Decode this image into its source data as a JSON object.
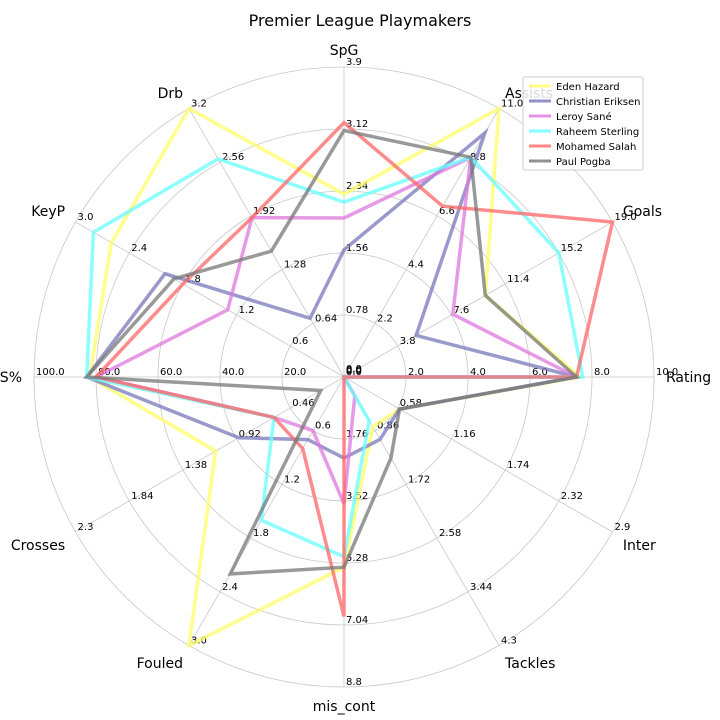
{
  "chart_data": {
    "type": "radar",
    "title": "Premier League Playmakers",
    "grid": true,
    "legend_position": "top-right",
    "axes": [
      {
        "name": "SpG",
        "max": 3.9,
        "ticks": [
          "0.78",
          "1.56",
          "2.34",
          "3.12",
          "3.9"
        ]
      },
      {
        "name": "Assists",
        "max": 11.0,
        "ticks": [
          "2.2",
          "4.4",
          "6.6",
          "8.8",
          "11.0"
        ]
      },
      {
        "name": "Goals",
        "max": 19.0,
        "ticks": [
          "3.8",
          "7.6",
          "11.4",
          "15.2",
          "19.0"
        ]
      },
      {
        "name": "Rating",
        "max": 10.0,
        "ticks": [
          "2.0",
          "4.0",
          "6.0",
          "8.0",
          "10.0"
        ]
      },
      {
        "name": "Inter",
        "max": 2.9,
        "ticks": [
          "0.58",
          "1.16",
          "1.74",
          "2.32",
          "2.9"
        ]
      },
      {
        "name": "Tackles",
        "max": 4.3,
        "ticks": [
          "0.86",
          "1.72",
          "2.58",
          "3.44",
          "4.3"
        ]
      },
      {
        "name": "mis_cont",
        "max": 8.8,
        "ticks": [
          "1.76",
          "3.52",
          "5.28",
          "7.04",
          "8.8"
        ]
      },
      {
        "name": "Fouled",
        "max": 3.0,
        "ticks": [
          "0.6",
          "1.2",
          "1.8",
          "2.4",
          "3.0"
        ]
      },
      {
        "name": "Crosses",
        "max": 2.3,
        "ticks": [
          "0.46",
          "0.92",
          "1.38",
          "1.84",
          "2.3"
        ]
      },
      {
        "name": "PS%",
        "max": 100.0,
        "ticks": [
          "20.0",
          "40.0",
          "60.0",
          "80.0",
          "100.0"
        ]
      },
      {
        "name": "KeyP",
        "max": 3.0,
        "ticks": [
          "0.6",
          "1.2",
          "1.8",
          "2.4",
          "3.0"
        ]
      },
      {
        "name": "Drb",
        "max": 3.2,
        "ticks": [
          "0.64",
          "1.28",
          "1.92",
          "2.56",
          "3.2"
        ]
      }
    ],
    "zero_labels": [
      "0.0",
      "0.0",
      "0.0",
      "0.0"
    ],
    "series": [
      {
        "name": "Eden Hazard",
        "color": "#ffff66",
        "values": [
          2.3,
          11.0,
          10.0,
          7.6,
          0.6,
          0.8,
          5.4,
          3.0,
          1.1,
          82.0,
          2.6,
          3.2
        ]
      },
      {
        "name": "Christian Eriksen",
        "color": "#7777bb",
        "values": [
          1.6,
          10.0,
          5.1,
          7.5,
          0.6,
          1.0,
          2.3,
          0.7,
          0.9,
          83.0,
          2.0,
          0.7
        ]
      },
      {
        "name": "Leroy Sané",
        "color": "#dd77dd",
        "values": [
          2.0,
          9.0,
          7.7,
          7.5,
          0.0,
          0.3,
          3.6,
          0.6,
          0.6,
          80.0,
          1.3,
          1.9
        ]
      },
      {
        "name": "Raheem Sterling",
        "color": "#66ffff",
        "values": [
          2.2,
          9.0,
          15.2,
          7.7,
          0.0,
          0.7,
          5.1,
          1.6,
          0.6,
          83.0,
          2.8,
          2.6
        ]
      },
      {
        "name": "Mohamed Salah",
        "color": "#ff6666",
        "values": [
          3.2,
          7.0,
          19.0,
          7.5,
          0.0,
          0.0,
          6.8,
          0.8,
          0.6,
          80.0,
          1.8,
          1.9
        ]
      },
      {
        "name": "Paul Pogba",
        "color": "#777777",
        "values": [
          3.1,
          9.0,
          10.0,
          7.5,
          0.6,
          1.3,
          5.4,
          2.2,
          0.2,
          83.0,
          1.9,
          1.5
        ]
      }
    ]
  }
}
